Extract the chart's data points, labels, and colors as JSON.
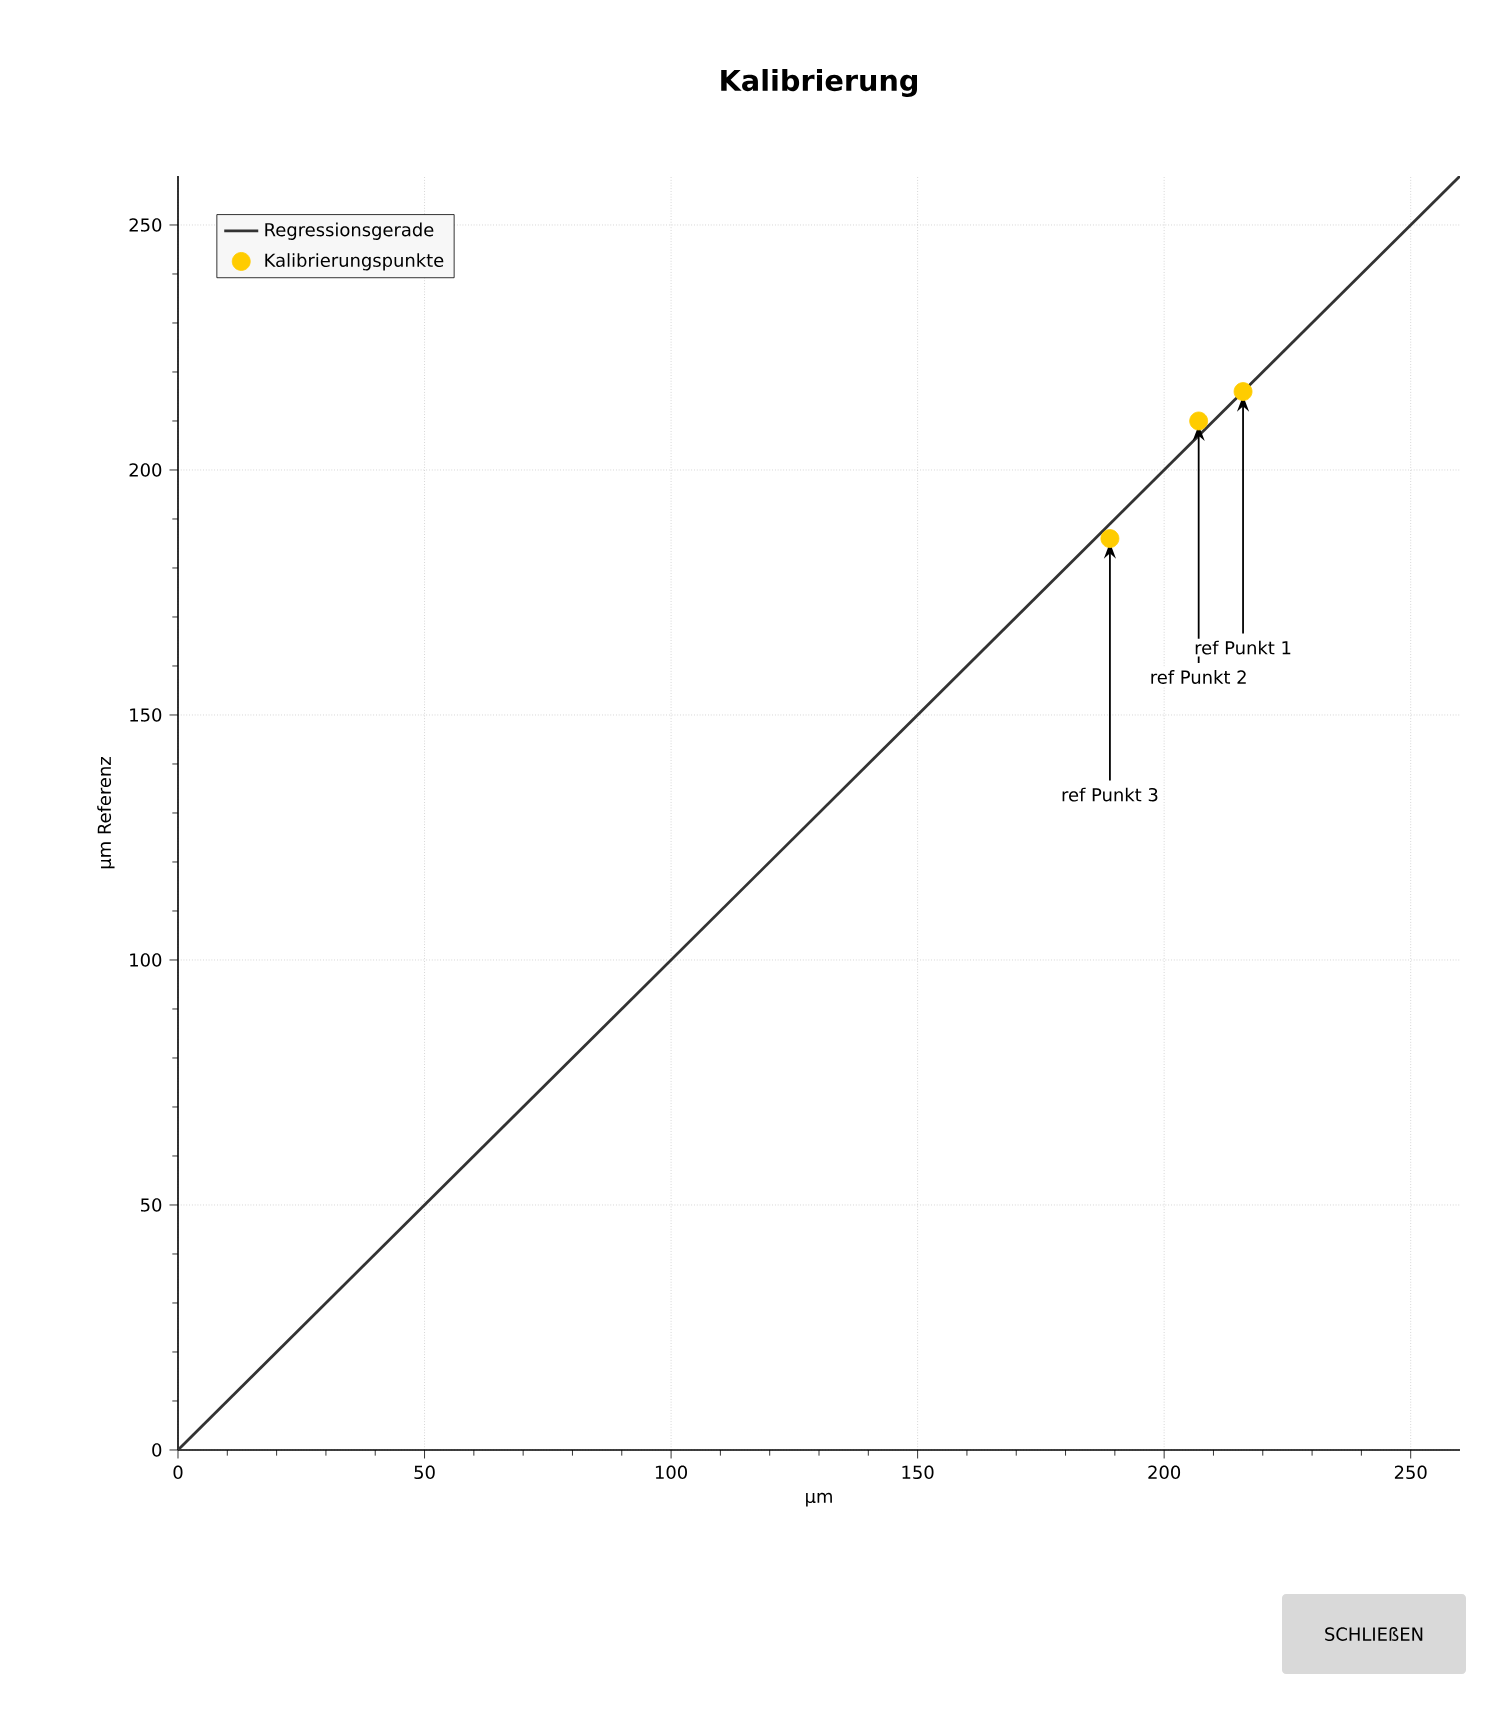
{
  "chart_data": {
    "type": "line",
    "title": "Kalibrierung",
    "xlabel": "µm",
    "ylabel": "µm Referenz",
    "xlim": [
      0,
      260
    ],
    "ylim": [
      0,
      260
    ],
    "xticks": [
      0,
      50,
      100,
      150,
      200,
      250
    ],
    "yticks": [
      0,
      50,
      100,
      150,
      200,
      250
    ],
    "grid": true,
    "legend": "top left",
    "series": [
      {
        "name": "Regressionsgerade",
        "marker": "none",
        "color": "#333333",
        "x": [
          0,
          260
        ],
        "values": [
          0,
          260
        ]
      },
      {
        "type": "scatter",
        "name": "Kalibrierungspunkte",
        "color": "#ffcc00",
        "marker": "circle",
        "x": [
          216,
          207,
          189
        ],
        "values": [
          216,
          210,
          186
        ]
      }
    ],
    "annotations": [
      {
        "text": "ref Punkt 1",
        "x": 216,
        "y": 216
      },
      {
        "text": "ref Punkt 2",
        "x": 207,
        "y": 210
      },
      {
        "text": "ref Punkt 3",
        "x": 189,
        "y": 186
      },
      "SCHLIEßEN"
    ]
  }
}
